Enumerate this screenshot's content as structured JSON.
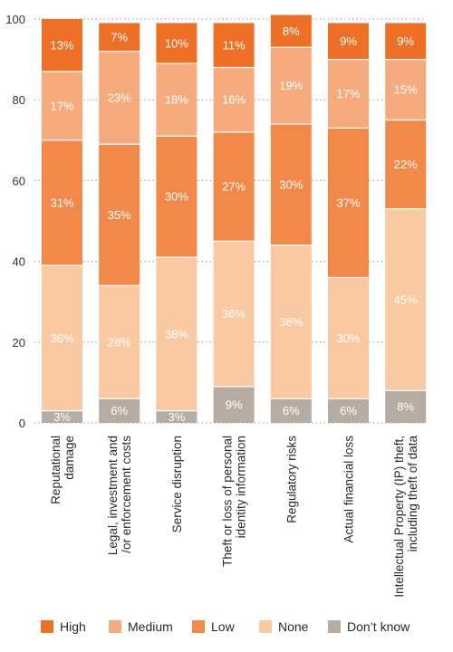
{
  "chart_data": {
    "type": "bar",
    "stacked": true,
    "categories": [
      [
        "Reputational",
        "damage"
      ],
      [
        "Legal, investment and",
        "/or enforcement costs"
      ],
      [
        "Service disruption"
      ],
      [
        "Theft or loss of personal",
        "identity information"
      ],
      [
        "Regulatory risks"
      ],
      [
        "Actual financial loss"
      ],
      [
        "Intellectual Property (IP) theft,",
        "including theft of data"
      ]
    ],
    "series": [
      {
        "name": "Don’t know",
        "color": "#b7aca3",
        "values": [
          3,
          6,
          3,
          9,
          6,
          6,
          8
        ]
      },
      {
        "name": "None",
        "color": "#f9c9a3",
        "values": [
          36,
          28,
          38,
          36,
          38,
          30,
          45
        ]
      },
      {
        "name": "Low",
        "color": "#f0894a",
        "values": [
          31,
          35,
          30,
          27,
          30,
          37,
          22
        ]
      },
      {
        "name": "Medium",
        "color": "#f6ab7e",
        "values": [
          17,
          23,
          18,
          16,
          19,
          17,
          15
        ]
      },
      {
        "name": "High",
        "color": "#ee7026",
        "values": [
          13,
          7,
          10,
          11,
          8,
          9,
          9
        ]
      }
    ],
    "legend_order": [
      "High",
      "Medium",
      "Low",
      "None",
      "Don’t know"
    ],
    "value_suffix": "%",
    "ylim": [
      0,
      100
    ],
    "yticks": [
      0,
      20,
      40,
      60,
      80,
      100
    ],
    "grid": true,
    "legend_position": "bottom"
  }
}
